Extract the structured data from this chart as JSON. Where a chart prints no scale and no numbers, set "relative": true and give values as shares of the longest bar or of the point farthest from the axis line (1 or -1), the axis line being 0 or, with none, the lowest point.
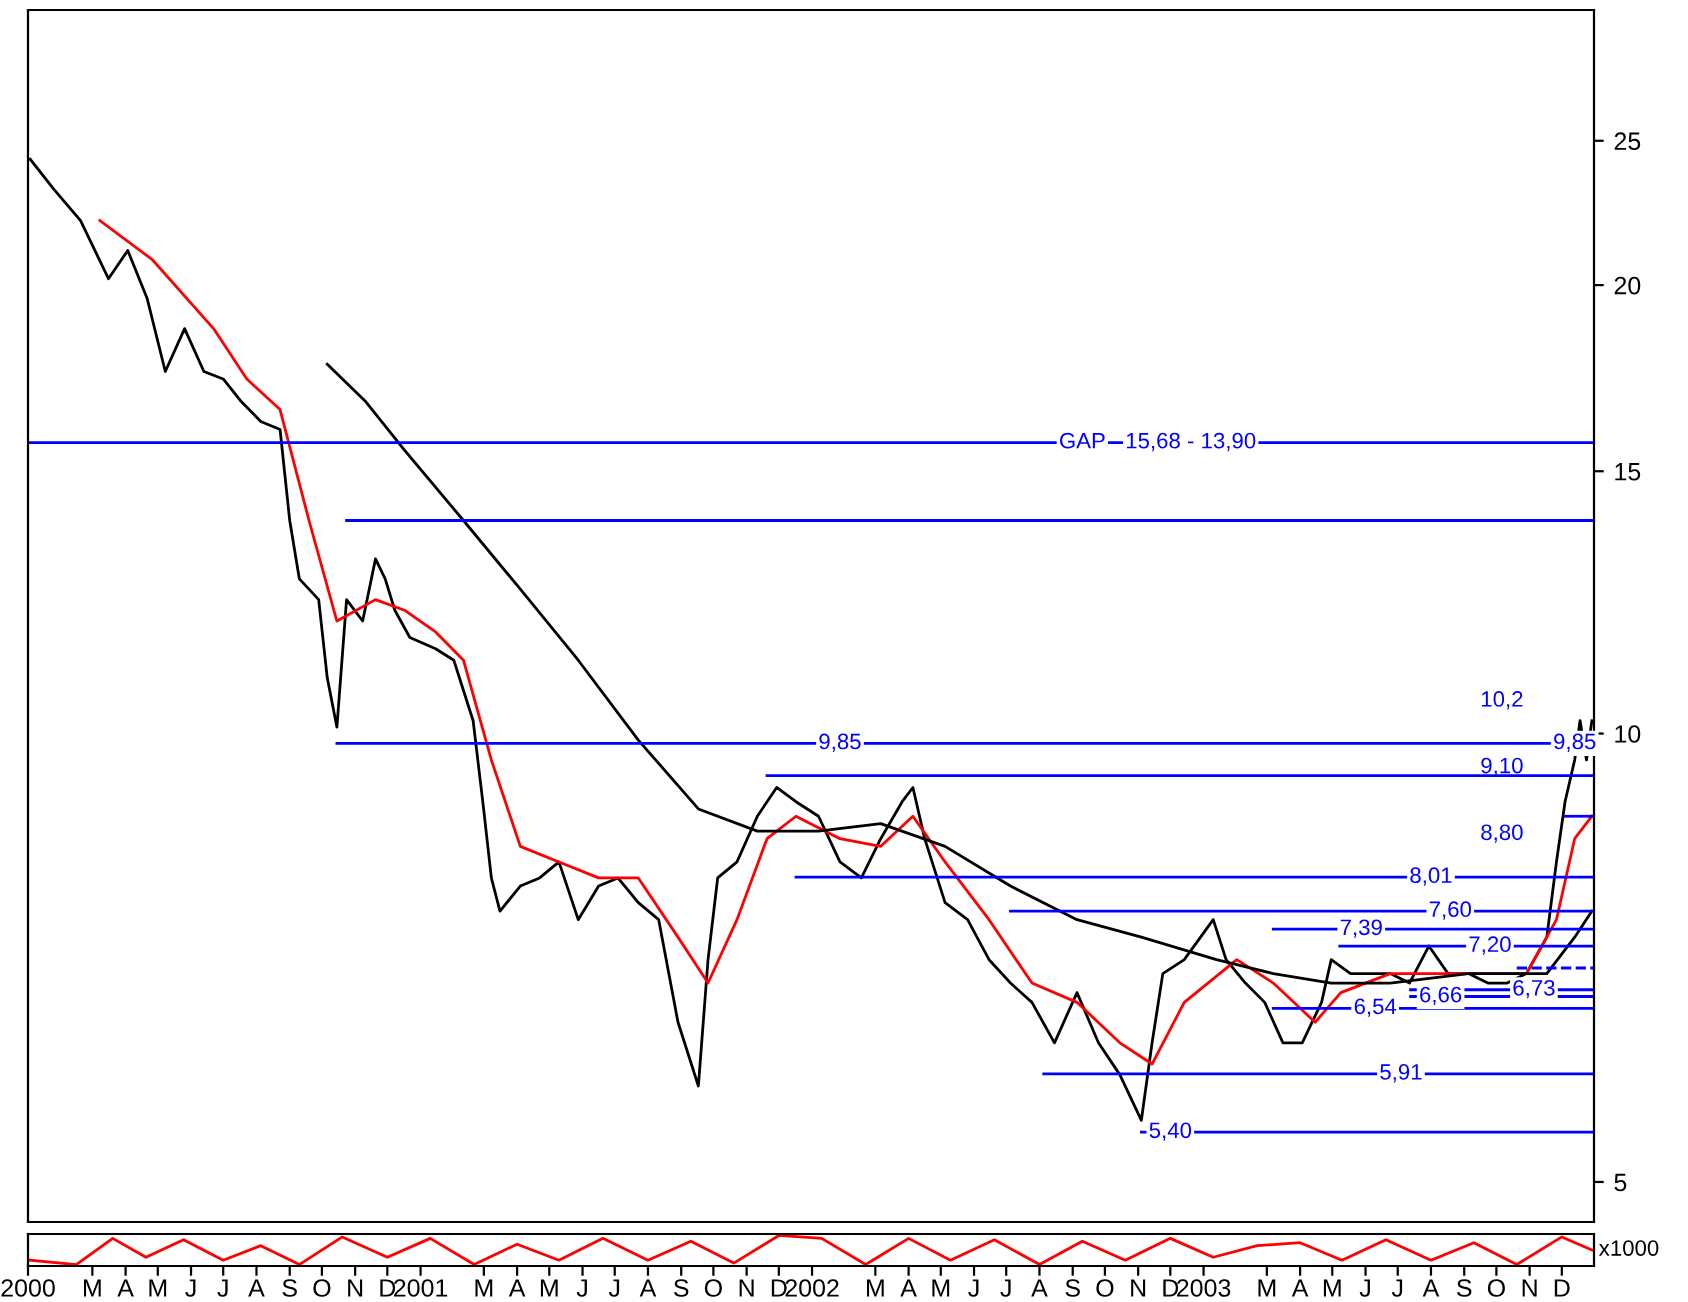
{
  "chart_data": [
    {
      "type": "line",
      "log": true,
      "tick_labels": "y",
      "grid": false,
      "legend": false,
      "xlim": [
        "2000-01-01",
        "2003-12-31"
      ],
      "ylim": [
        4.7,
        30.6
      ],
      "yticks": [
        5,
        10,
        15,
        20,
        25
      ],
      "series": [
        {
          "color": "#000000",
          "x": [
            "2000-01-03",
            "2000-01-25",
            "2000-02-19",
            "2000-03-16",
            "2000-04-03",
            "2000-04-21",
            "2000-05-08",
            "2000-05-26",
            "2000-06-13",
            "2000-07-01",
            "2000-07-18",
            "2000-08-05",
            "2000-08-23",
            "2000-09-01",
            "2000-09-10",
            "2000-09-28",
            "2000-10-06",
            "2000-10-15",
            "2000-10-24",
            "2000-11-08",
            "2000-11-20",
            "2000-11-29",
            "2000-12-08",
            "2000-12-22",
            "2001-01-15",
            "2001-02-01",
            "2001-02-19",
            "2001-02-28",
            "2001-03-08",
            "2001-03-16",
            "2001-04-04",
            "2001-04-22",
            "2001-05-10",
            "2001-05-28",
            "2001-06-16",
            "2001-07-04",
            "2001-07-23",
            "2001-08-11",
            "2001-08-29",
            "2001-09-17",
            "2001-09-26",
            "2001-10-05",
            "2001-10-23",
            "2001-11-11",
            "2001-11-29",
            "2001-12-17",
            "2002-01-07",
            "2002-01-27",
            "2002-02-16",
            "2002-03-06",
            "2002-03-26",
            "2002-04-05",
            "2002-04-16",
            "2002-05-05",
            "2002-05-26",
            "2002-06-15",
            "2002-07-05",
            "2002-07-25",
            "2002-08-15",
            "2002-09-05",
            "2002-09-25",
            "2002-10-15",
            "2002-11-04",
            "2002-11-14",
            "2002-11-24",
            "2002-12-14",
            "2003-01-10",
            "2003-01-22",
            "2003-02-09",
            "2003-02-27",
            "2003-03-16",
            "2003-04-03",
            "2003-04-21",
            "2003-04-30",
            "2003-05-18",
            "2003-06-06",
            "2003-06-24",
            "2003-07-12",
            "2003-07-30",
            "2003-08-17",
            "2003-09-05",
            "2003-09-23",
            "2003-10-11",
            "2003-10-29",
            "2003-11-17",
            "2003-11-26",
            "2003-12-04",
            "2003-12-13",
            "2003-12-18",
            "2003-12-24",
            "2003-12-29"
          ],
          "values": [
            24.3,
            23.2,
            22.1,
            20.2,
            21.1,
            19.6,
            17.5,
            18.7,
            17.5,
            17.3,
            16.7,
            16.2,
            16.0,
            13.9,
            12.7,
            12.3,
            10.9,
            10.1,
            12.3,
            11.9,
            13.1,
            12.7,
            12.1,
            11.6,
            11.4,
            11.2,
            10.2,
            9.0,
            8.0,
            7.6,
            7.9,
            8.0,
            8.2,
            7.5,
            7.9,
            8.0,
            7.7,
            7.5,
            6.4,
            5.8,
            7.05,
            8.0,
            8.2,
            8.8,
            9.2,
            9.0,
            8.8,
            8.2,
            8.0,
            8.5,
            9.0,
            9.2,
            8.5,
            7.7,
            7.5,
            7.05,
            6.8,
            6.6,
            6.2,
            6.7,
            6.2,
            5.9,
            5.5,
            6.2,
            6.9,
            7.05,
            7.5,
            7.05,
            6.8,
            6.6,
            6.2,
            6.2,
            6.6,
            7.05,
            6.9,
            6.9,
            6.9,
            6.8,
            7.2,
            6.9,
            6.9,
            6.8,
            6.8,
            6.9,
            7.3,
            8.2,
            9.0,
            9.6,
            10.2,
            9.6,
            10.2
          ]
        },
        {
          "color": "#ff0000",
          "x": [
            "2000-03-08",
            "2000-04-26",
            "2000-06-22",
            "2000-07-23",
            "2000-08-23",
            "2000-09-19",
            "2000-10-15",
            "2000-11-20",
            "2000-12-17",
            "2001-01-15",
            "2001-02-10",
            "2001-03-08",
            "2001-04-04",
            "2001-05-10",
            "2001-06-16",
            "2001-07-23",
            "2001-08-29",
            "2001-09-26",
            "2001-10-23",
            "2001-11-20",
            "2001-12-17",
            "2002-01-27",
            "2002-03-06",
            "2002-04-05",
            "2002-05-05",
            "2002-06-15",
            "2002-07-25",
            "2002-09-05",
            "2002-10-15",
            "2002-11-14",
            "2002-12-14",
            "2003-02-01",
            "2003-03-07",
            "2003-04-15",
            "2003-05-09",
            "2003-06-24",
            "2003-09-05",
            "2003-10-29",
            "2003-11-26",
            "2003-12-13",
            "2003-12-29"
          ],
          "values": [
            22.1,
            20.8,
            18.7,
            17.3,
            16.5,
            13.9,
            11.9,
            12.3,
            12.1,
            11.7,
            11.2,
            9.6,
            8.4,
            8.2,
            8.0,
            8.0,
            7.3,
            6.8,
            7.5,
            8.5,
            8.8,
            8.5,
            8.4,
            8.8,
            8.2,
            7.5,
            6.8,
            6.6,
            6.2,
            6.0,
            6.6,
            7.05,
            6.8,
            6.4,
            6.7,
            6.9,
            6.9,
            6.9,
            7.5,
            8.5,
            8.8
          ]
        },
        {
          "color": "#000000",
          "x": [
            "2000-10-06",
            "2000-11-11",
            "2000-12-17",
            "2001-02-10",
            "2001-04-04",
            "2001-05-28",
            "2001-07-23",
            "2001-09-17",
            "2001-11-11",
            "2002-01-07",
            "2002-03-06",
            "2002-05-05",
            "2002-07-05",
            "2002-09-05",
            "2002-11-04",
            "2003-01-13",
            "2003-03-07",
            "2003-04-30",
            "2003-06-24",
            "2003-09-05",
            "2003-11-17",
            "2003-12-13",
            "2003-12-29"
          ],
          "values": [
            17.7,
            16.7,
            15.5,
            13.9,
            12.5,
            11.2,
            9.9,
            8.9,
            8.6,
            8.6,
            8.7,
            8.4,
            7.9,
            7.5,
            7.3,
            7.05,
            6.9,
            6.8,
            6.8,
            6.9,
            6.9,
            7.3,
            7.6
          ]
        },
        {
          "color": "#0000ff",
          "x": [
            "2000-01-03",
            "2003-12-31"
          ],
          "values": [
            15.68,
            15.68
          ]
        },
        {
          "color": "#0000ff",
          "x": [
            "2000-10-24",
            "2003-12-31"
          ],
          "values": [
            13.9,
            13.9
          ]
        },
        {
          "color": "#0000ff",
          "x": [
            "2000-10-15",
            "2003-12-31"
          ],
          "values": [
            9.85,
            9.85
          ]
        },
        {
          "color": "#0000ff",
          "x": [
            "2001-11-20",
            "2003-12-31"
          ],
          "values": [
            9.37,
            9.37
          ]
        },
        {
          "color": "#0000ff",
          "x": [
            "2003-12-04",
            "2003-12-29"
          ],
          "values": [
            8.8,
            8.8
          ]
        },
        {
          "color": "#0000ff",
          "x": [
            "2001-12-17",
            "2003-12-31"
          ],
          "values": [
            8.01,
            8.01
          ]
        },
        {
          "color": "#0000ff",
          "x": [
            "2002-07-05",
            "2003-12-31"
          ],
          "values": [
            7.6,
            7.6
          ]
        },
        {
          "color": "#0000ff",
          "x": [
            "2003-03-07",
            "2003-12-31"
          ],
          "values": [
            7.39,
            7.39
          ]
        },
        {
          "color": "#0000ff",
          "x": [
            "2003-05-08",
            "2003-12-31"
          ],
          "values": [
            7.2,
            7.2
          ]
        },
        {
          "color": "#0000ff",
          "line_style": "dashed",
          "x": [
            "2003-10-20",
            "2003-12-31"
          ],
          "values": [
            6.96,
            6.96
          ]
        },
        {
          "color": "#0000ff",
          "x": [
            "2003-07-13",
            "2003-12-31"
          ],
          "values": [
            6.73,
            6.73
          ]
        },
        {
          "color": "#0000ff",
          "x": [
            "2003-07-13",
            "2003-12-31"
          ],
          "values": [
            6.66,
            6.66
          ]
        },
        {
          "color": "#0000ff",
          "x": [
            "2003-03-07",
            "2003-12-31"
          ],
          "values": [
            6.54,
            6.54
          ]
        },
        {
          "color": "#0000ff",
          "x": [
            "2002-08-05",
            "2003-12-31"
          ],
          "values": [
            5.91,
            5.91
          ]
        },
        {
          "color": "#0000ff",
          "x": [
            "2002-11-04",
            "2003-12-31"
          ],
          "values": [
            5.4,
            5.4
          ]
        }
      ],
      "annotations": [
        {
          "text": "GAP",
          "x": "2002-09-10",
          "y": 15.68
        },
        {
          "text": "15,68 - 13,90",
          "x": "2002-12-20",
          "y": 15.68
        },
        {
          "text": "9,85",
          "x": "2002-01-27",
          "y": 9.85
        },
        "10,2",
        {
          "text": "9,85",
          "x": "2003-12-13",
          "y": 9.85
        },
        "9,10",
        "8,80",
        {
          "text": "8,01",
          "x": "2003-08-01",
          "y": 8.01
        },
        {
          "text": "7,60",
          "x": "2003-08-19",
          "y": 7.6
        },
        {
          "text": "7,39",
          "x": "2003-05-28",
          "y": 7.39
        },
        {
          "text": "7,20",
          "x": "2003-09-25",
          "y": 7.2
        },
        {
          "text": "6,54",
          "x": "2003-06-10",
          "y": 6.54
        },
        {
          "text": "6,66",
          "x": "2003-08-10",
          "y": 6.66
        },
        {
          "text": "6,73",
          "x": "2003-11-05",
          "y": 6.73
        },
        {
          "text": "5,91",
          "x": "2003-07-04",
          "y": 5.91
        },
        {
          "text": "5,40",
          "x": "2002-12-01",
          "y": 5.4
        }
      ]
    },
    {
      "type": "line",
      "relative": true,
      "grid": false,
      "legend": false,
      "xlim": [
        "2000-01-01",
        "2003-12-31"
      ],
      "xticks": [
        {
          "value": "2000-01-01",
          "label": "2000"
        },
        {
          "value": "2000-03-01",
          "label": "M"
        },
        {
          "value": "2000-04-01",
          "label": "A"
        },
        {
          "value": "2000-05-01",
          "label": "M"
        },
        {
          "value": "2000-06-01",
          "label": "J"
        },
        {
          "value": "2000-07-01",
          "label": "J"
        },
        {
          "value": "2000-08-01",
          "label": "A"
        },
        {
          "value": "2000-09-01",
          "label": "S"
        },
        {
          "value": "2000-10-01",
          "label": "O"
        },
        {
          "value": "2000-11-01",
          "label": "N"
        },
        {
          "value": "2000-12-01",
          "label": "D"
        },
        {
          "value": "2001-01-01",
          "label": "2001"
        },
        {
          "value": "2001-03-01",
          "label": "M"
        },
        {
          "value": "2001-04-01",
          "label": "A"
        },
        {
          "value": "2001-05-01",
          "label": "M"
        },
        {
          "value": "2001-06-01",
          "label": "J"
        },
        {
          "value": "2001-07-01",
          "label": "J"
        },
        {
          "value": "2001-08-01",
          "label": "A"
        },
        {
          "value": "2001-09-01",
          "label": "S"
        },
        {
          "value": "2001-10-01",
          "label": "O"
        },
        {
          "value": "2001-11-01",
          "label": "N"
        },
        {
          "value": "2001-12-01",
          "label": "D"
        },
        {
          "value": "2002-01-01",
          "label": "2002"
        },
        {
          "value": "2002-03-01",
          "label": "M"
        },
        {
          "value": "2002-04-01",
          "label": "A"
        },
        {
          "value": "2002-05-01",
          "label": "M"
        },
        {
          "value": "2002-06-01",
          "label": "J"
        },
        {
          "value": "2002-07-01",
          "label": "J"
        },
        {
          "value": "2002-08-01",
          "label": "A"
        },
        {
          "value": "2002-09-01",
          "label": "S"
        },
        {
          "value": "2002-10-01",
          "label": "O"
        },
        {
          "value": "2002-11-01",
          "label": "N"
        },
        {
          "value": "2002-12-01",
          "label": "D"
        },
        {
          "value": "2003-01-01",
          "label": "2003"
        },
        {
          "value": "2003-03-01",
          "label": "M"
        },
        {
          "value": "2003-04-01",
          "label": "A"
        },
        {
          "value": "2003-05-01",
          "label": "M"
        },
        {
          "value": "2003-06-01",
          "label": "J"
        },
        {
          "value": "2003-07-01",
          "label": "J"
        },
        {
          "value": "2003-08-01",
          "label": "A"
        },
        {
          "value": "2003-09-01",
          "label": "S"
        },
        {
          "value": "2003-10-01",
          "label": "O"
        },
        {
          "value": "2003-11-01",
          "label": "N"
        },
        {
          "value": "2003-12-01",
          "label": "D"
        }
      ],
      "series": [
        {
          "color": "#ff0000",
          "x": [
            "2000-01-03",
            "2000-02-15",
            "2000-03-20",
            "2000-04-20",
            "2000-05-25",
            "2000-07-01",
            "2000-08-05",
            "2000-09-10",
            "2000-10-20",
            "2000-12-01",
            "2001-01-10",
            "2001-02-20",
            "2001-04-01",
            "2001-05-10",
            "2001-06-20",
            "2001-08-01",
            "2001-09-10",
            "2001-10-20",
            "2001-12-01",
            "2002-01-10",
            "2002-02-20",
            "2002-04-01",
            "2002-05-10",
            "2002-06-20",
            "2002-08-01",
            "2002-09-10",
            "2002-10-20",
            "2002-12-01",
            "2003-01-10",
            "2003-02-20",
            "2003-04-01",
            "2003-05-10",
            "2003-06-20",
            "2003-08-01",
            "2003-09-10",
            "2003-10-20",
            "2003-12-01",
            "2003-12-29"
          ],
          "values": [
            0.15,
            0,
            0.9,
            0.25,
            0.85,
            0.15,
            0.65,
            0,
            0.95,
            0.25,
            0.9,
            0,
            0.7,
            0.15,
            0.9,
            0.15,
            0.8,
            0.05,
            1,
            0.9,
            0,
            0.9,
            0.15,
            0.85,
            0,
            0.8,
            0.15,
            0.9,
            0.25,
            0.65,
            0.75,
            0.15,
            0.85,
            0.15,
            0.75,
            0,
            0.95,
            0.5
          ]
        }
      ],
      "annotations": [
        "x1000"
      ]
    }
  ]
}
